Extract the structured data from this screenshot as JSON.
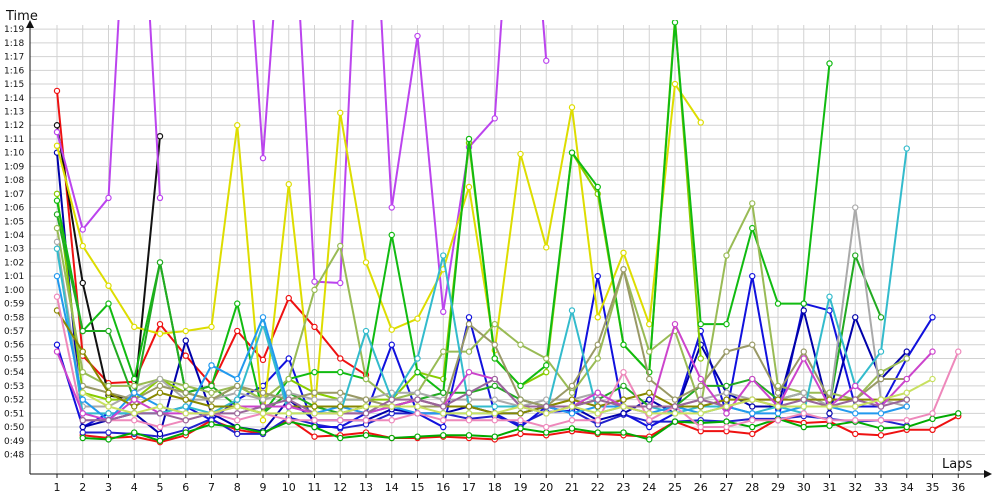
{
  "chart_data": {
    "type": "line",
    "xlabel": "Laps",
    "ylabel": "Time",
    "x": [
      1,
      2,
      3,
      4,
      5,
      6,
      7,
      8,
      9,
      10,
      11,
      12,
      13,
      14,
      15,
      16,
      17,
      18,
      19,
      20,
      21,
      22,
      23,
      24,
      25,
      26,
      27,
      28,
      29,
      30,
      31,
      32,
      33,
      34,
      35,
      36
    ],
    "ytick_labels": [
      "0:48",
      "0:49",
      "0:50",
      "0:51",
      "0:52",
      "0:53",
      "0:54",
      "0:55",
      "0:56",
      "0:57",
      "0:58",
      "0:59",
      "1:00",
      "1:01",
      "1:02",
      "1:03",
      "1:04",
      "1:05",
      "1:06",
      "1:07",
      "1:08",
      "1:09",
      "1:10",
      "1:11",
      "1:12",
      "1:13",
      "1:14",
      "1:15",
      "1:16",
      "1:17",
      "1:18",
      "1:19"
    ],
    "ylim_seconds": [
      46,
      81
    ],
    "grid": true,
    "series": [
      {
        "color": "#ee1111",
        "values": [
          74.5,
          55.2,
          53.2,
          53.3,
          57.5,
          55.2,
          53.1,
          57.0,
          54.9,
          59.4,
          57.3,
          55.0,
          53.8,
          null,
          null,
          null,
          null,
          null,
          null,
          null,
          null,
          null,
          null,
          null,
          null,
          null,
          null,
          null,
          null,
          null,
          null,
          null,
          null,
          null,
          null,
          null
        ]
      },
      {
        "color": "#ee1111",
        "values": [
          null,
          49.4,
          49.2,
          49.3,
          48.9,
          49.4,
          50.5,
          49.8,
          49.5,
          50.6,
          49.3,
          49.4,
          49.6,
          49.2,
          49.2,
          49.3,
          49.2,
          49.1,
          49.5,
          49.4,
          49.7,
          49.5,
          49.4,
          49.3,
          50.4,
          49.7,
          49.7,
          49.5,
          50.6,
          50.3,
          50.4,
          49.5,
          49.4,
          49.8,
          49.8,
          50.8
        ]
      },
      {
        "color": "#2222cc",
        "values": [
          null,
          49.6,
          49.6,
          49.5,
          49.3,
          49.8,
          50.6,
          49.5,
          49.5,
          50.7,
          50.2,
          49.9,
          50.2,
          51.0,
          51.0,
          51.0,
          50.6,
          50.8,
          50.2,
          51.1,
          51.2,
          50.2,
          50.9,
          50.4,
          50.4,
          50.5,
          50.4,
          50.6,
          50.6,
          50.8,
          50.6,
          50.4,
          50.5,
          50.1,
          null,
          null
        ]
      },
      {
        "color": "#1111dd",
        "values": [
          56.0,
          50.0,
          51.0,
          51.0,
          51.0,
          51.5,
          50.5,
          52.0,
          53.0,
          55.0,
          50.0,
          50.0,
          51.0,
          56.0,
          51.0,
          50.0,
          58.0,
          51.0,
          50.0,
          51.5,
          51.0,
          61.0,
          51.0,
          50.0,
          51.0,
          57.0,
          51.0,
          61.0,
          50.5,
          59.0,
          58.5,
          51.5,
          51.5,
          55.0,
          58.0,
          null
        ]
      },
      {
        "color": "#0000aa",
        "values": [
          70.0,
          50.0,
          50.5,
          51.0,
          49.5,
          56.3,
          51.0,
          50.0,
          49.7,
          52.0,
          50.5,
          50.5,
          50.5,
          51.3,
          51.0,
          51.0,
          51.5,
          51.0,
          51.0,
          51.5,
          51.5,
          50.5,
          51.0,
          52.0,
          51.0,
          56.0,
          52.5,
          51.5,
          51.5,
          58.5,
          51.0,
          58.0,
          53.5,
          55.5,
          null,
          null
        ]
      },
      {
        "color": "#111111",
        "values": [
          72.0,
          60.5,
          52.3,
          52.0,
          71.2,
          null,
          null,
          null,
          null,
          null,
          null,
          null,
          null,
          null,
          null,
          null,
          null,
          null,
          null,
          null,
          null,
          null,
          null,
          null,
          null,
          null,
          null,
          null,
          null,
          null,
          null,
          null,
          null,
          null,
          null,
          null
        ]
      },
      {
        "color": "#bb44ee",
        "values": [
          71.5,
          64.4,
          66.7,
          100,
          66.7,
          null,
          null,
          97,
          69.6,
          95,
          60.6,
          60.5,
          100,
          66.0,
          78.5,
          58.4,
          70.4,
          72.5,
          100,
          76.7,
          null,
          null,
          null,
          null,
          null,
          null,
          null,
          null,
          null,
          null,
          null,
          null,
          null,
          null,
          null,
          null
        ]
      },
      {
        "color": "#dddd00",
        "values": [
          70.5,
          63.2,
          60.3,
          57.3,
          56.8,
          57.0,
          57.3,
          72.0,
          50.5,
          67.7,
          51.0,
          72.9,
          62.0,
          57.1,
          57.9,
          61.5,
          67.5,
          55.6,
          69.9,
          63.1,
          73.3,
          58.0,
          62.7,
          57.5,
          75.0,
          72.2,
          null,
          null,
          null,
          null,
          null,
          null,
          null,
          null,
          null,
          null
        ]
      },
      {
        "color": "#88cc00",
        "values": [
          67.0,
          52.5,
          52.0,
          52.0,
          53.5,
          52.5,
          52.0,
          53.0,
          52.0,
          53.5,
          52.5,
          52.0,
          52.0,
          52.0,
          54.0,
          53.5,
          70.7,
          55.0,
          53.0,
          54.0,
          70.0,
          67.0,
          56.0,
          54.0,
          79.8,
          55.0,
          null,
          null,
          null,
          null,
          null,
          null,
          null,
          null,
          null,
          null
        ]
      },
      {
        "color": "#11bb11",
        "values": [
          66.5,
          57.0,
          59.0,
          53.5,
          62.0,
          52.5,
          53.0,
          59.0,
          51.0,
          53.5,
          54.0,
          54.0,
          53.5,
          64.0,
          54.0,
          52.5,
          71.0,
          55.0,
          53.0,
          54.5,
          70.0,
          67.5,
          56.0,
          54.0,
          79.5,
          57.5,
          57.5,
          64.5,
          59.0,
          59.0,
          76.5,
          null,
          null,
          null,
          null,
          null
        ]
      },
      {
        "color": "#22aa22",
        "values": [
          65.5,
          57.0,
          57.0,
          52.0,
          62.0,
          52.5,
          53.0,
          51.5,
          51.0,
          52.5,
          51.5,
          51.0,
          51.5,
          51.5,
          52.0,
          52.5,
          52.5,
          53.0,
          52.0,
          51.5,
          51.5,
          52.0,
          53.0,
          51.5,
          51.5,
          53.0,
          53.0,
          53.5,
          52.0,
          52.5,
          51.5,
          62.5,
          58.0,
          null,
          null,
          null
        ]
      },
      {
        "color": "#00aa00",
        "values": [
          null,
          49.2,
          49.1,
          49.6,
          49.0,
          49.6,
          50.2,
          50.0,
          49.6,
          50.4,
          50.0,
          49.2,
          49.4,
          49.2,
          49.3,
          49.4,
          49.4,
          49.3,
          49.9,
          49.6,
          49.9,
          49.6,
          49.6,
          49.1,
          50.4,
          50.3,
          50.4,
          50.0,
          50.6,
          50.0,
          50.1,
          50.4,
          49.9,
          50.0,
          50.6,
          51.0
        ]
      },
      {
        "color": "#99bb55",
        "values": [
          64.5,
          54.0,
          53.0,
          53.0,
          53.5,
          53.0,
          52.5,
          53.0,
          52.0,
          53.5,
          60.0,
          63.2,
          53.5,
          52.0,
          52.5,
          55.5,
          55.5,
          57.5,
          56.0,
          55.0,
          52.5,
          55.0,
          61.5,
          55.5,
          57.0,
          51.5,
          62.5,
          66.3,
          53.0,
          52.5,
          52.5,
          52.0,
          54.0,
          55.0,
          null,
          null
        ]
      },
      {
        "color": "#aaaaaa",
        "values": [
          63.5,
          51.5,
          51.5,
          52.5,
          53.5,
          52.0,
          52.0,
          52.5,
          52.0,
          52.5,
          52.0,
          52.0,
          52.0,
          52.5,
          52.5,
          52.0,
          52.0,
          52.0,
          51.5,
          52.0,
          52.0,
          52.5,
          51.5,
          51.5,
          51.5,
          52.0,
          52.5,
          52.0,
          52.0,
          52.5,
          51.5,
          66.0,
          52.0,
          51.5,
          null,
          null
        ]
      },
      {
        "color": "#999966",
        "values": [
          null,
          53.0,
          52.5,
          52.0,
          53.0,
          52.5,
          52.0,
          53.0,
          52.5,
          52.0,
          52.5,
          52.5,
          52.0,
          51.5,
          51.5,
          51.5,
          57.5,
          56.0,
          52.0,
          51.5,
          53.0,
          56.0,
          61.5,
          53.5,
          52.0,
          53.0,
          55.5,
          56.0,
          52.5,
          55.5,
          52.0,
          52.0,
          53.5,
          53.5,
          null,
          null
        ]
      },
      {
        "color": "#33bbcc",
        "values": [
          63.0,
          51.0,
          51.0,
          51.0,
          51.0,
          51.5,
          51.0,
          52.0,
          57.5,
          51.0,
          51.0,
          51.0,
          57.0,
          52.0,
          55.0,
          62.5,
          51.5,
          51.5,
          51.5,
          51.0,
          58.5,
          51.0,
          51.5,
          51.5,
          51.0,
          51.5,
          51.5,
          51.0,
          51.5,
          51.0,
          59.5,
          53.0,
          55.5,
          70.3,
          null,
          null
        ]
      },
      {
        "color": "#2299ee",
        "values": [
          61.0,
          52.0,
          50.5,
          52.5,
          51.5,
          51.0,
          54.5,
          53.5,
          58.0,
          51.5,
          51.0,
          51.5,
          51.0,
          51.5,
          51.0,
          51.0,
          51.0,
          51.0,
          51.0,
          51.5,
          51.0,
          51.5,
          51.5,
          51.0,
          51.5,
          51.0,
          51.5,
          51.0,
          51.0,
          51.5,
          51.5,
          51.0,
          51.0,
          51.5,
          null,
          null
        ]
      },
      {
        "color": "#888800",
        "values": [
          58.5,
          55.5,
          52.5,
          51.5,
          52.5,
          52.0,
          51.5,
          51.5,
          51.5,
          51.5,
          51.5,
          51.5,
          51.5,
          51.5,
          52.0,
          51.5,
          51.5,
          51.0,
          51.0,
          51.5,
          52.0,
          51.5,
          52.0,
          52.5,
          51.5,
          51.5,
          52.0,
          52.0,
          52.0,
          52.0,
          52.0,
          52.0,
          52.0,
          52.0,
          null,
          null
        ]
      },
      {
        "color": "#ee88bb",
        "values": [
          59.5,
          50.5,
          50.5,
          50.5,
          50.0,
          50.5,
          51.0,
          50.5,
          51.0,
          50.5,
          50.5,
          50.5,
          50.5,
          50.5,
          51.0,
          50.5,
          50.5,
          50.5,
          50.5,
          50.0,
          50.5,
          50.5,
          54.0,
          50.5,
          51.5,
          50.0,
          50.0,
          50.5,
          50.5,
          51.0,
          50.5,
          50.5,
          50.5,
          50.5,
          51.0,
          55.5
        ]
      },
      {
        "color": "#cc44cc",
        "values": [
          55.5,
          51.0,
          50.5,
          52.0,
          51.0,
          51.0,
          51.0,
          51.5,
          51.5,
          51.5,
          51.0,
          51.0,
          51.0,
          51.5,
          52.0,
          51.5,
          54.0,
          53.5,
          51.5,
          51.0,
          51.5,
          52.5,
          51.5,
          51.0,
          57.5,
          53.5,
          51.0,
          53.5,
          51.5,
          55.0,
          51.5,
          53.0,
          51.5,
          53.5,
          55.5,
          null
        ]
      },
      {
        "color": "#996699",
        "values": [
          null,
          50.5,
          50.5,
          51.0,
          51.0,
          50.5,
          51.0,
          51.0,
          51.5,
          52.0,
          51.0,
          51.0,
          51.0,
          52.0,
          52.0,
          51.5,
          52.5,
          53.5,
          51.5,
          51.5,
          51.5,
          52.0,
          51.5,
          51.5,
          51.5,
          52.0,
          51.5,
          52.0,
          51.5,
          52.0,
          51.5,
          52.0,
          51.5,
          52.0,
          null,
          null
        ]
      },
      {
        "color": "#c8e060",
        "values": [
          null,
          52.5,
          51.5,
          51.0,
          51.5,
          51.0,
          51.0,
          51.5,
          51.0,
          51.0,
          51.0,
          51.0,
          51.5,
          51.5,
          51.5,
          51.0,
          51.0,
          51.0,
          51.5,
          51.0,
          51.5,
          51.0,
          51.5,
          51.0,
          51.0,
          51.0,
          51.5,
          52.0,
          51.5,
          51.5,
          51.5,
          51.5,
          52.0,
          52.5,
          53.5,
          null
        ]
      }
    ]
  }
}
